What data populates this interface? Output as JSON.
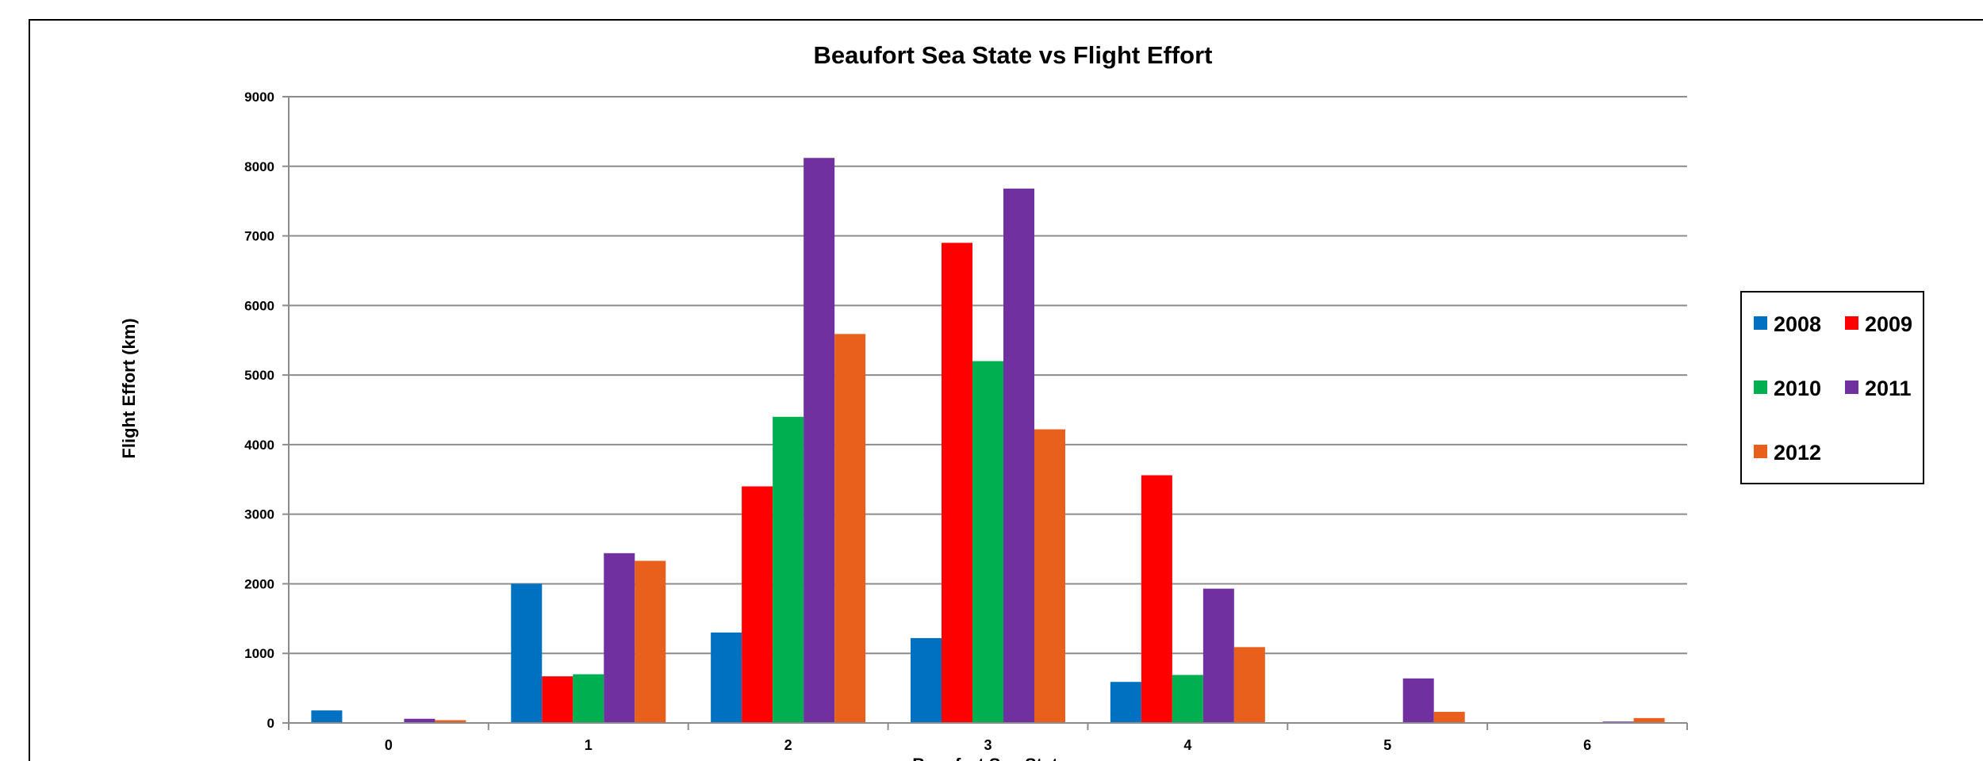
{
  "chart_data": {
    "type": "bar",
    "title": "Beaufort Sea State vs Flight Effort",
    "xlabel": "Beaufort Sea State",
    "ylabel": "Flight Effort (km)",
    "categories": [
      "0",
      "1",
      "2",
      "3",
      "4",
      "5",
      "6"
    ],
    "ylim": [
      0,
      9000
    ],
    "yticks": [
      "0",
      "1000",
      "2000",
      "3000",
      "4000",
      "5000",
      "6000",
      "7000",
      "8000",
      "9000"
    ],
    "grid": true,
    "legend_position": "right",
    "series": [
      {
        "name": "2008",
        "color": "#0070c0",
        "values": [
          180,
          2000,
          1300,
          1220,
          590,
          0,
          0
        ]
      },
      {
        "name": "2009",
        "color": "#ff0000",
        "values": [
          0,
          670,
          3400,
          6900,
          3560,
          0,
          0
        ]
      },
      {
        "name": "2010",
        "color": "#00b050",
        "values": [
          0,
          700,
          4400,
          5200,
          690,
          0,
          0
        ]
      },
      {
        "name": "2011",
        "color": "#7030a0",
        "values": [
          60,
          2440,
          8120,
          7680,
          1930,
          640,
          20
        ]
      },
      {
        "name": "2012",
        "color": "#e8601c",
        "values": [
          40,
          2330,
          5590,
          4220,
          1090,
          160,
          70
        ]
      }
    ]
  }
}
